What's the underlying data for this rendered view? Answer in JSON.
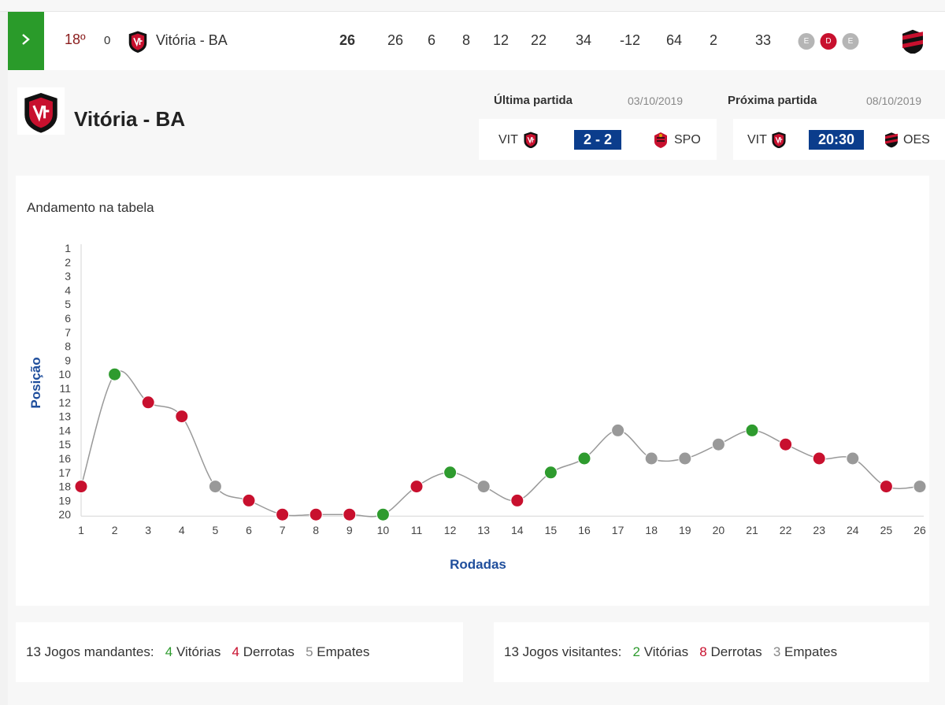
{
  "standings_row": {
    "position": "18º",
    "variation": "0",
    "team_name": "Vitória - BA",
    "stats": [
      "26",
      "26",
      "6",
      "8",
      "12",
      "22",
      "34",
      "-12",
      "64",
      "2",
      "33"
    ],
    "last_games": [
      {
        "label": "E",
        "color": "#b5b5b5"
      },
      {
        "label": "D",
        "color": "#c8102e"
      },
      {
        "label": "E",
        "color": "#b5b5b5"
      }
    ],
    "next_opponent_icon": "flamengo-crest-icon"
  },
  "team": {
    "name": "Vitória - BA",
    "crest_icon": "vitoria-crest-icon"
  },
  "last_match": {
    "label": "Última partida",
    "date": "03/10/2019",
    "home": "VIT",
    "score": "2 - 2",
    "away": "SPO"
  },
  "next_match": {
    "label": "Próxima partida",
    "date": "08/10/2019",
    "home": "VIT",
    "time": "20:30",
    "away": "OES"
  },
  "chart_data": {
    "type": "line",
    "title": "Andamento na tabela",
    "xlabel": "Rodadas",
    "ylabel": "Posição",
    "x": [
      1,
      2,
      3,
      4,
      5,
      6,
      7,
      8,
      9,
      10,
      11,
      12,
      13,
      14,
      15,
      16,
      17,
      18,
      19,
      20,
      21,
      22,
      23,
      24,
      25,
      26
    ],
    "y_ticks": [
      1,
      2,
      3,
      4,
      5,
      6,
      7,
      8,
      9,
      10,
      11,
      12,
      13,
      14,
      15,
      16,
      17,
      18,
      19,
      20
    ],
    "ylim": [
      1,
      20
    ],
    "y_inverted": true,
    "values": [
      18,
      10,
      12,
      13,
      18,
      19,
      20,
      20,
      20,
      20,
      18,
      17,
      18,
      19,
      17,
      16,
      14,
      16,
      16,
      15,
      14,
      15,
      16,
      16,
      18,
      18
    ],
    "results": [
      "D",
      "V",
      "D",
      "D",
      "E",
      "D",
      "D",
      "D",
      "D",
      "V",
      "D",
      "V",
      "E",
      "D",
      "V",
      "V",
      "E",
      "E",
      "E",
      "E",
      "V",
      "D",
      "D",
      "E",
      "D",
      "E"
    ],
    "result_colors": {
      "V": "#2e9b2e",
      "D": "#c8102e",
      "E": "#999999"
    }
  },
  "summary_home": {
    "games": "13",
    "games_label": "Jogos mandantes:",
    "wins": "4",
    "wins_label": "Vitórias",
    "losses": "4",
    "losses_label": "Derrotas",
    "draws": "5",
    "draws_label": "Empates"
  },
  "summary_away": {
    "games": "13",
    "games_label": "Jogos visitantes:",
    "wins": "2",
    "wins_label": "Vitórias",
    "losses": "8",
    "losses_label": "Derrotas",
    "draws": "3",
    "draws_label": "Empates"
  }
}
